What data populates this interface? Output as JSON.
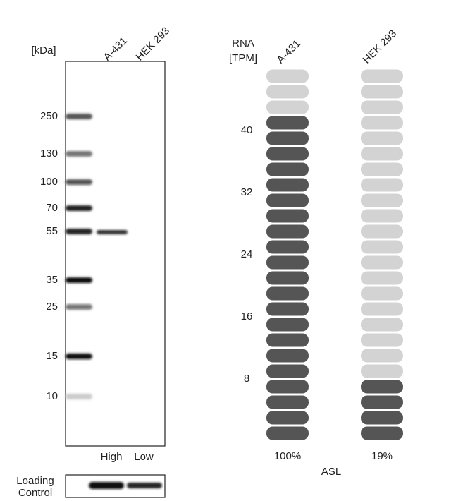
{
  "blot": {
    "unit_label": "[kDa]",
    "lanes": [
      "A-431",
      "HEK 293"
    ],
    "markers": [
      "250",
      "130",
      "100",
      "70",
      "55",
      "35",
      "25",
      "15",
      "10"
    ],
    "lane_levels": [
      "High",
      "Low"
    ],
    "loading_control": [
      "Loading",
      "Control"
    ]
  },
  "rna": {
    "axis_label": [
      "RNA",
      "[TPM]"
    ],
    "lanes": [
      "A-431",
      "HEK 293"
    ],
    "ticks": [
      8,
      16,
      24,
      32,
      40
    ],
    "filled": [
      21,
      4
    ],
    "percentages": [
      "100%",
      "19%"
    ],
    "gene": "ASL"
  }
}
